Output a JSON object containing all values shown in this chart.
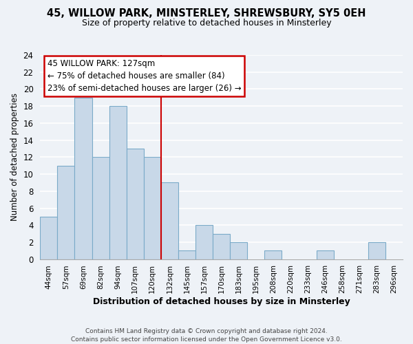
{
  "title_line1": "45, WILLOW PARK, MINSTERLEY, SHREWSBURY, SY5 0EH",
  "title_line2": "Size of property relative to detached houses in Minsterley",
  "xlabel": "Distribution of detached houses by size in Minsterley",
  "ylabel": "Number of detached properties",
  "footer_line1": "Contains HM Land Registry data © Crown copyright and database right 2024.",
  "footer_line2": "Contains public sector information licensed under the Open Government Licence v3.0.",
  "bin_labels": [
    "44sqm",
    "57sqm",
    "69sqm",
    "82sqm",
    "94sqm",
    "107sqm",
    "120sqm",
    "132sqm",
    "145sqm",
    "157sqm",
    "170sqm",
    "183sqm",
    "195sqm",
    "208sqm",
    "220sqm",
    "233sqm",
    "246sqm",
    "258sqm",
    "271sqm",
    "283sqm",
    "296sqm"
  ],
  "bar_values": [
    5,
    11,
    19,
    12,
    18,
    13,
    12,
    9,
    1,
    4,
    3,
    2,
    0,
    1,
    0,
    0,
    1,
    0,
    0,
    2,
    0
  ],
  "bar_color": "#c8d8e8",
  "bar_edge_color": "#7aaac8",
  "annotation_title": "45 WILLOW PARK: 127sqm",
  "annotation_line2": "← 75% of detached houses are smaller (84)",
  "annotation_line3": "23% of semi-detached houses are larger (26) →",
  "annotation_box_color": "#ffffff",
  "annotation_box_edge": "#cc0000",
  "vline_color": "#cc0000",
  "ylim": [
    0,
    24
  ],
  "yticks": [
    0,
    2,
    4,
    6,
    8,
    10,
    12,
    14,
    16,
    18,
    20,
    22,
    24
  ],
  "background_color": "#eef2f7",
  "plot_background": "#eef2f7",
  "grid_color": "#ffffff",
  "title1_fontsize": 10.5,
  "title2_fontsize": 9
}
